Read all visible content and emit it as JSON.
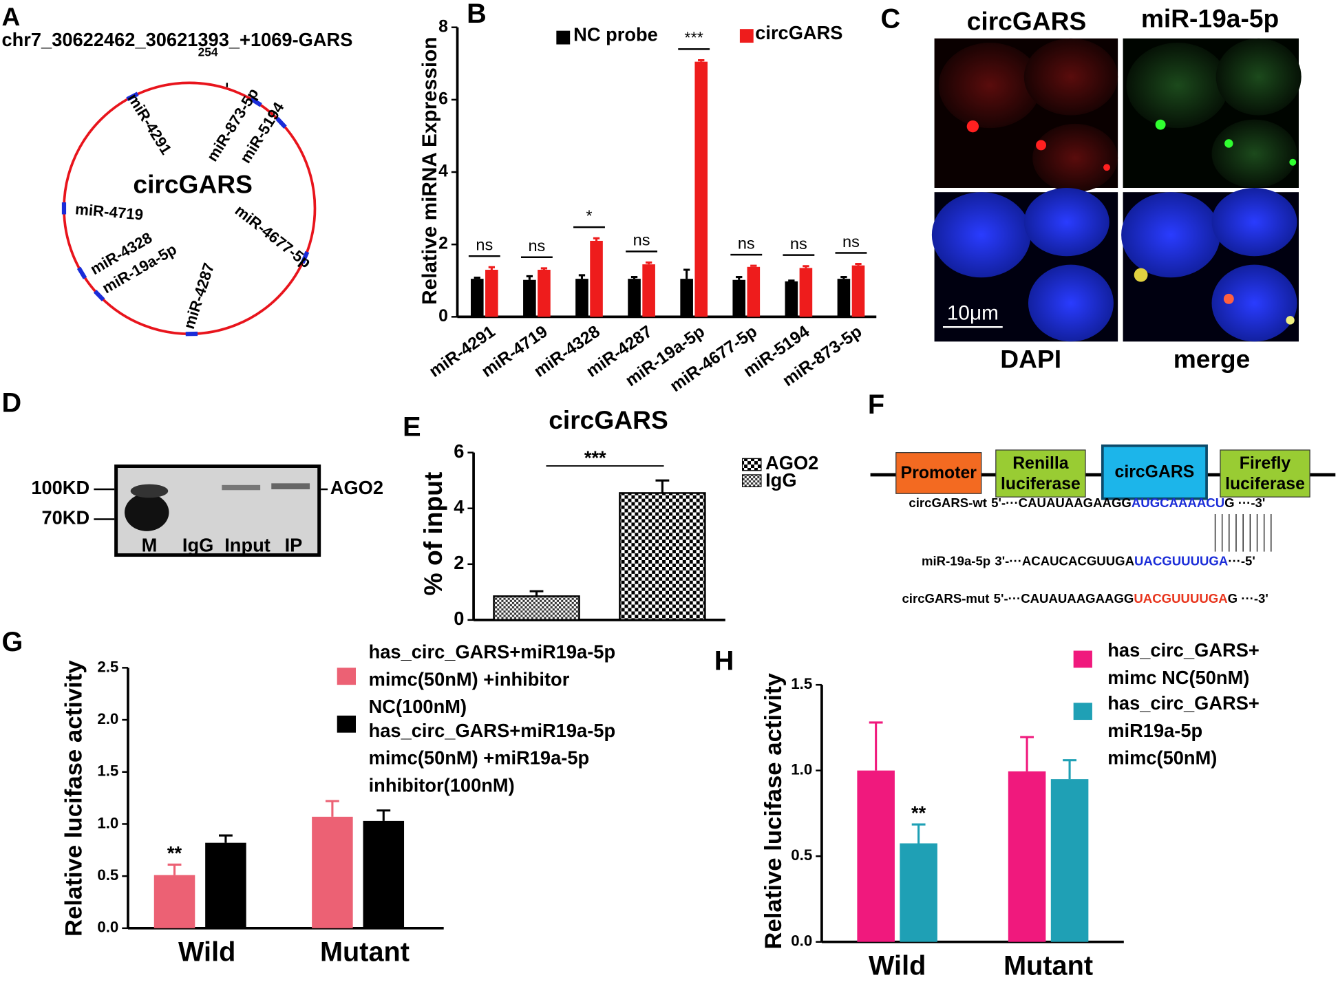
{
  "panel_labels": [
    "A",
    "B",
    "C",
    "D",
    "E",
    "F",
    "G",
    "H"
  ],
  "circle_diagram": {
    "title": "chr7_30622462_30621393_+1069-GARS",
    "position_label": "254",
    "center_label": "circGARS",
    "labels": [
      "miR-4291",
      "miR-873-5p",
      "miR-5194",
      "miR-4719",
      "miR-4328",
      "miR-19a-5p",
      "miR-4287",
      "miR-4677-5p"
    ]
  },
  "microscopy": {
    "channel_labels": [
      "circGARS",
      "miR-19a-5p",
      "DAPI",
      "merge"
    ],
    "scale_bar": "10μm"
  },
  "blot": {
    "markers": [
      "100KD",
      "70KD"
    ],
    "protein": "AGO2",
    "lanes": [
      "M",
      "IgG",
      "Input",
      "IP"
    ]
  },
  "construct": {
    "elements": [
      "Promoter",
      "Renilla\nluciferase",
      "circGARS",
      "Firefly\nluciferase"
    ],
    "sequences": [
      {
        "label": "circGARS-wt",
        "parts": [
          "5'-···CAUAUAAGAAGG",
          "AUGCAAAACU",
          "G ···-3'"
        ]
      },
      {
        "label": "miR-19a-5p",
        "parts": [
          "3'-···ACAUCACGUUGA",
          "UACGUUUUGA",
          "···-5'"
        ]
      },
      {
        "label": "circGARS-mut",
        "parts": [
          "5'-···CAUAUAAGAAGG",
          "UACGUUUUGA",
          "G ···-3'"
        ]
      }
    ]
  },
  "chart_data": [
    {
      "type": "bar",
      "y_label": "Relative miRNA Expression",
      "categories": [
        "miR-4291",
        "miR-4719",
        "miR-4328",
        "miR-4287",
        "miR-19a-5p",
        "miR-4677-5p",
        "miR-5194",
        "miR-873-5p"
      ],
      "series": [
        {
          "name": "NC probe",
          "color": "#000000",
          "values": [
            1.05,
            1.02,
            1.05,
            1.05,
            1.05,
            1.02,
            0.98,
            1.05
          ],
          "errors": [
            0.03,
            0.1,
            0.1,
            0.05,
            0.25,
            0.08,
            0.02,
            0.05
          ]
        },
        {
          "name": "circGARS",
          "color": "#ee1c1c",
          "values": [
            1.3,
            1.3,
            2.1,
            1.45,
            7.05,
            1.38,
            1.35,
            1.42
          ],
          "errors": [
            0.07,
            0.04,
            0.07,
            0.05,
            0.04,
            0.03,
            0.05,
            0.04
          ]
        }
      ],
      "significance": [
        "ns",
        "ns",
        "*",
        "ns",
        "***",
        "ns",
        "ns",
        "ns"
      ],
      "ylim": [
        0,
        8
      ],
      "yticks": [
        0,
        2,
        4,
        6,
        8
      ]
    },
    {
      "type": "bar",
      "title": "circGARS",
      "y_label": "% of input",
      "series": [
        {
          "name": "AGO2",
          "color": "#000000",
          "values": [
            4.55
          ],
          "errors": [
            0.45
          ]
        },
        {
          "name": "IgG",
          "color": "#000000",
          "values": [
            0.85
          ],
          "errors": [
            0.18
          ]
        }
      ],
      "significance": "***",
      "ylim": [
        0,
        6
      ],
      "yticks": [
        0,
        2,
        4,
        6
      ]
    },
    {
      "type": "bar",
      "y_label": "Relative lucifase activity",
      "categories": [
        "Wild",
        "Mutant"
      ],
      "series": [
        {
          "name": "has_circ_GARS+miR19a-5p\nmimc(50nM) +inhibitor\nNC(100nM)",
          "color": "#ec6174",
          "values": [
            0.51,
            1.07
          ],
          "errors": [
            0.1,
            0.15
          ],
          "significance": [
            "**",
            null
          ]
        },
        {
          "name": "has_circ_GARS+miR19a-5p\nmimc(50nM) +miR19a-5p\ninhibitor(100nM)",
          "color": "#000000",
          "values": [
            0.82,
            1.03
          ],
          "errors": [
            0.07,
            0.1
          ]
        }
      ],
      "ylim": [
        0,
        2.5
      ],
      "yticks": [
        {
          "value": 0,
          "label": "0.0"
        },
        0.5,
        {
          "value": 1,
          "label": "1.0"
        },
        1.5,
        {
          "value": 2,
          "label": "2.0"
        },
        2.5
      ]
    },
    {
      "type": "bar",
      "y_label": "Relative lucifase activity",
      "categories": [
        "Wild",
        "Mutant"
      ],
      "series": [
        {
          "name": "has_circ_GARS+\nmimc NC(50nM)",
          "color": "#f0197d",
          "values": [
            1.0,
            0.995
          ],
          "errors": [
            0.28,
            0.2
          ]
        },
        {
          "name": "has_circ_GARS+\nmiR19a-5p\nmimc(50nM)",
          "color": "#1fa0b5",
          "values": [
            0.575,
            0.95
          ],
          "errors": [
            0.11,
            0.11
          ],
          "significance": [
            "**",
            null
          ]
        }
      ],
      "ylim": [
        0,
        1.5
      ],
      "yticks": [
        {
          "value": 0,
          "label": "0.0"
        },
        0.5,
        {
          "value": 1,
          "label": "1.0"
        },
        1.5
      ]
    }
  ]
}
